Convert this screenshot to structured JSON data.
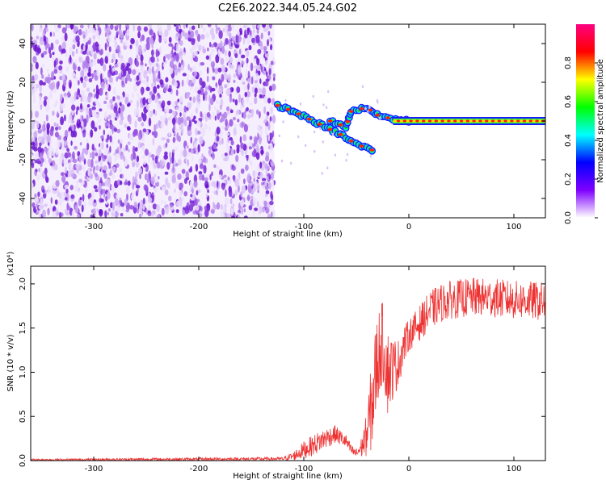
{
  "title": "C2E6.2022.344.05.24.G02",
  "colors": {
    "spectrogram_noise": "#7a2ad8",
    "snr_line": "#ee3333",
    "axis": "#000000"
  },
  "chart_data": [
    {
      "type": "heatmap",
      "title": "C2E6.2022.344.05.24.G02",
      "xlabel": "Height of straight line (km)",
      "ylabel": "Frequency (Hz)",
      "xlim": [
        -360,
        130
      ],
      "ylim": [
        -50,
        50
      ],
      "xticks": [
        -300,
        -200,
        -100,
        0,
        100
      ],
      "yticks": [
        -40,
        -20,
        0,
        20,
        40
      ],
      "grid": false,
      "noise_region": {
        "x": [
          -360,
          -128
        ],
        "frequency": [
          -50,
          50
        ]
      },
      "signal_track": {
        "main_branch": [
          {
            "x": -125,
            "y": 8
          },
          {
            "x": -110,
            "y": 5
          },
          {
            "x": -95,
            "y": 1
          },
          {
            "x": -80,
            "y": -3
          },
          {
            "x": -65,
            "y": -7
          },
          {
            "x": -50,
            "y": -12
          },
          {
            "x": -35,
            "y": -15
          }
        ],
        "upper_branch": [
          {
            "x": -75,
            "y": 0
          },
          {
            "x": -60,
            "y": -3
          },
          {
            "x": -55,
            "y": 5
          },
          {
            "x": -40,
            "y": 7
          },
          {
            "x": -30,
            "y": 3
          },
          {
            "x": -15,
            "y": 1
          },
          {
            "x": 0,
            "y": 0
          },
          {
            "x": 130,
            "y": 0
          }
        ]
      },
      "colorbar": {
        "label": "Normalized spectral amplitude",
        "range": [
          0.0,
          1.0
        ],
        "ticks": [
          "0.0",
          "0.2",
          "0.4",
          "0.6",
          "0.8"
        ],
        "stops": [
          "#ffffff",
          "#7f00ff",
          "#0000ff",
          "#00ffff",
          "#00ff00",
          "#ffff00",
          "#ff0000",
          "#ff0080"
        ]
      }
    },
    {
      "type": "line",
      "xlabel": "Height of straight line (km)",
      "ylabel": "SNR (10 * v/v)",
      "multiplier": "(x10⁴)",
      "xlim": [
        -360,
        130
      ],
      "ylim": [
        0,
        2.2
      ],
      "xticks": [
        -300,
        -200,
        -100,
        0,
        100
      ],
      "yticks": [
        "0.0",
        "0.5",
        "1.0",
        "1.5",
        "2.0"
      ],
      "grid": false,
      "series": [
        {
          "color": "#ee3333",
          "envelope_x": [
            -360,
            -120,
            -110,
            -100,
            -90,
            -80,
            -70,
            -60,
            -55,
            -50,
            -45,
            -40,
            -35,
            -30,
            -25,
            -20,
            -15,
            -10,
            -5,
            0,
            10,
            20,
            30,
            40,
            60,
            80,
            100,
            130
          ],
          "envelope_y": [
            0.01,
            0.02,
            0.05,
            0.12,
            0.18,
            0.25,
            0.3,
            0.22,
            0.12,
            0.08,
            0.15,
            0.3,
            0.65,
            1.15,
            1.35,
            1.0,
            1.05,
            1.1,
            1.3,
            1.42,
            1.55,
            1.7,
            1.78,
            1.82,
            1.85,
            1.84,
            1.82,
            1.8
          ],
          "spread": [
            0.01,
            0.02,
            0.05,
            0.1,
            0.12,
            0.12,
            0.1,
            0.08,
            0.06,
            0.06,
            0.12,
            0.25,
            0.55,
            0.55,
            0.45,
            0.5,
            0.35,
            0.28,
            0.22,
            0.18,
            0.2,
            0.22,
            0.22,
            0.22,
            0.22,
            0.22,
            0.22,
            0.22
          ]
        }
      ]
    }
  ]
}
